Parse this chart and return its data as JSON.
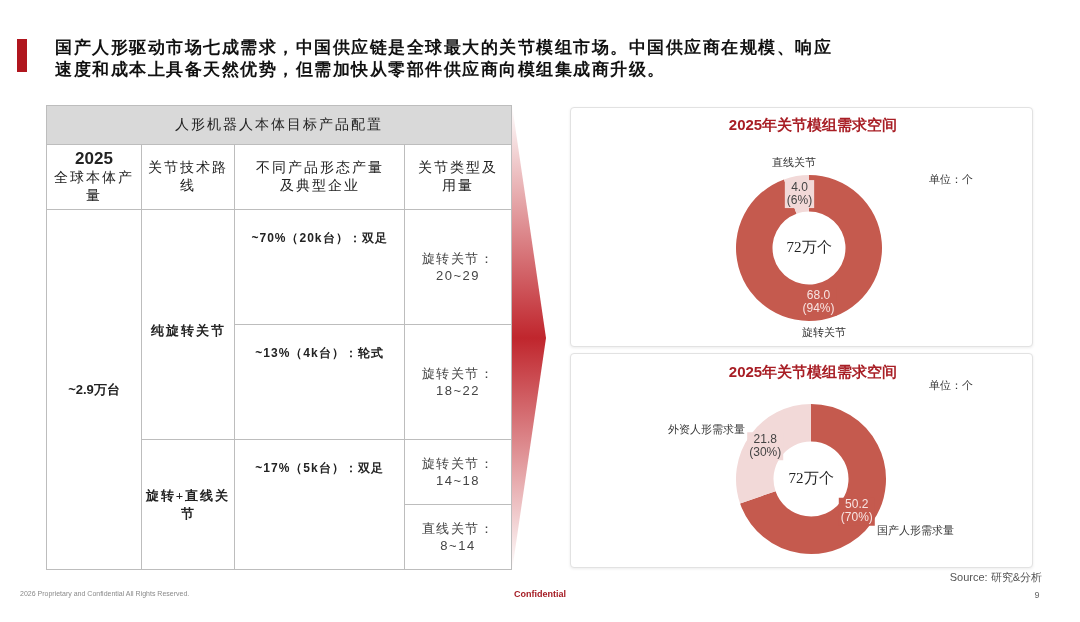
{
  "chart_data": [
    {
      "type": "other",
      "title": "国产人形驱动市场七成需求，中国供应链是全球最大的关节模组市场。中国供应商在规模、响应速度和成本上具备天然优势，但需加快从零部件供应商向模组集成商升级。",
      "subtitle": "人形机器人本体目标产品配置",
      "annotations": [
        "2025",
        "全球本体产量",
        "关节技术路线",
        "不同产品形态产量及典型企业",
        "关节类型及用量",
        "~2.9万台",
        "纯旋转关节",
        "旋转+直线关节",
        "~70%（20k台）：双足",
        "~13%（4k台）：轮式",
        "~17%（5k台）：双足",
        "旋转关节：20~29",
        "旋转关节：18~22",
        "旋转关节：14~18",
        "直线关节：8~14",
        "2026 Proprietary and Confidential All Rights Reserved.",
        "Confidential",
        "9"
      ]
    },
    {
      "type": "donut",
      "title": "2025年关节模组需求空间",
      "categories": [
        "旋转关节",
        "直线关节"
      ],
      "values": [
        68.0,
        4.0
      ],
      "colors": [
        "#c55a4e",
        "#f2d9d8"
      ],
      "value_labels": [
        "68.0\n(94%)",
        "4.0\n(6%)"
      ],
      "legend": false,
      "annotations": [
        "72万个",
        "单位：个"
      ]
    },
    {
      "type": "donut",
      "title": "2025年关节模组需求空间",
      "categories": [
        "国产人形需求量",
        "外资人形需求量"
      ],
      "values": [
        50.2,
        21.8
      ],
      "colors": [
        "#c55a4e",
        "#f2d9d8"
      ],
      "value_labels": [
        "50.2\n(70%)",
        "21.8\n(30%)"
      ],
      "legend": false,
      "annotations": [
        "72万个",
        "单位：个",
        "Source: 研究&分析"
      ]
    }
  ]
}
